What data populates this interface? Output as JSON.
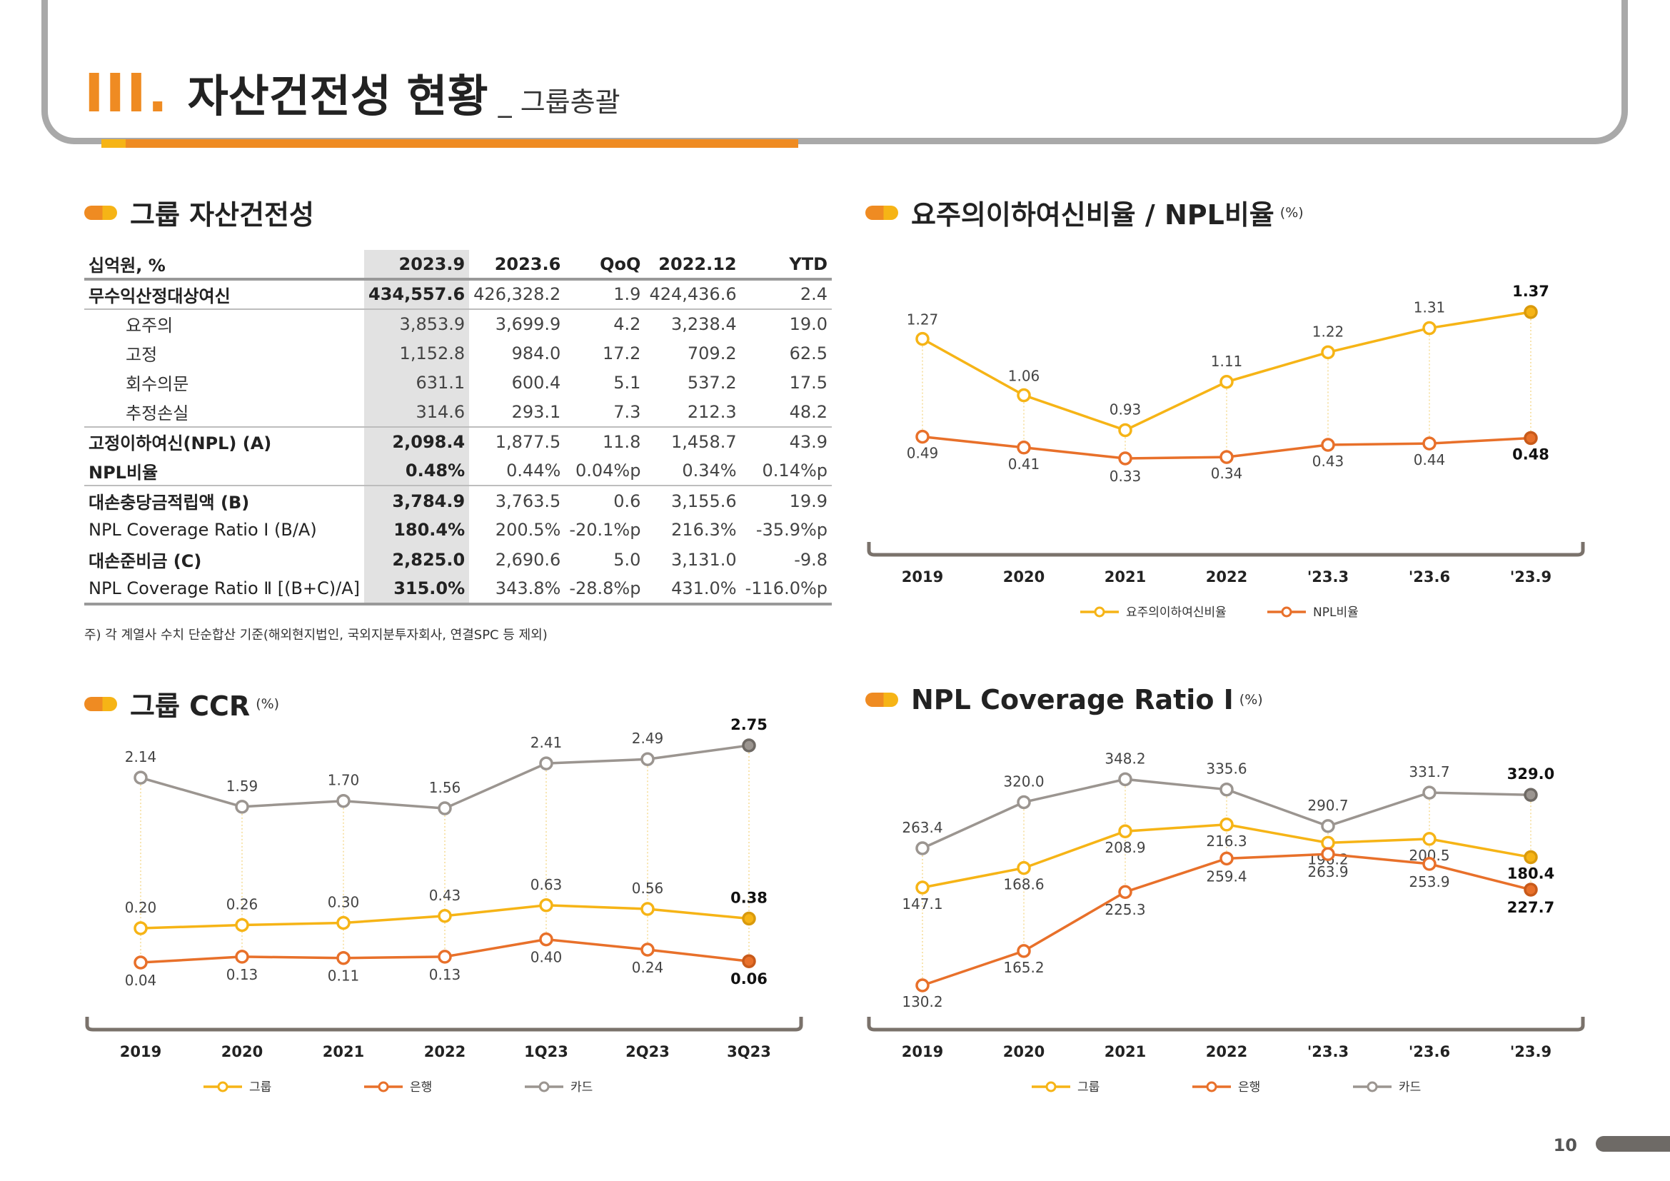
{
  "header": {
    "section_number": "III",
    "section_dot": ".",
    "title": "자산건전성 현황",
    "subtitle": "_ 그룹총괄"
  },
  "colors": {
    "yellow": "#f6b416",
    "orange": "#e8702a",
    "gray": "#9b9590",
    "accent": "#ef8b22"
  },
  "table_section": {
    "title": "그룹 자산건전성",
    "columns": [
      "십억원, %",
      "2023.9",
      "2023.6",
      "QoQ",
      "2022.12",
      "YTD"
    ],
    "rows": [
      {
        "label": "무수익산정대상여신",
        "v": [
          "434,557.6",
          "426,328.2",
          "1.9",
          "424,436.6",
          "2.4"
        ]
      },
      {
        "label": "요주의",
        "v": [
          "3,853.9",
          "3,699.9",
          "4.2",
          "3,238.4",
          "19.0"
        ]
      },
      {
        "label": "고정",
        "v": [
          "1,152.8",
          "984.0",
          "17.2",
          "709.2",
          "62.5"
        ]
      },
      {
        "label": "회수의문",
        "v": [
          "631.1",
          "600.4",
          "5.1",
          "537.2",
          "17.5"
        ]
      },
      {
        "label": "추정손실",
        "v": [
          "314.6",
          "293.1",
          "7.3",
          "212.3",
          "48.2"
        ]
      },
      {
        "label": "고정이하여신(NPL) (A)",
        "v": [
          "2,098.4",
          "1,877.5",
          "11.8",
          "1,458.7",
          "43.9"
        ]
      },
      {
        "label": "NPL비율",
        "v": [
          "0.48%",
          "0.44%",
          "0.04%p",
          "0.34%",
          "0.14%p"
        ]
      },
      {
        "label": "대손충당금적립액 (B)",
        "v": [
          "3,784.9",
          "3,763.5",
          "0.6",
          "3,155.6",
          "19.9"
        ]
      },
      {
        "label": "NPL Coverage Ratio Ⅰ (B/A)",
        "v": [
          "180.4%",
          "200.5%",
          "-20.1%p",
          "216.3%",
          "-35.9%p"
        ]
      },
      {
        "label": "대손준비금 (C)",
        "v": [
          "2,825.0",
          "2,690.6",
          "5.0",
          "3,131.0",
          "-9.8"
        ]
      },
      {
        "label": "NPL Coverage Ratio Ⅱ [(B+C)/A]",
        "v": [
          "315.0%",
          "343.8%",
          "-28.8%p",
          "431.0%",
          "-116.0%p"
        ]
      }
    ],
    "note": "주) 각 계열사 수치 단순합산 기준(해외현지법인, 국외지분투자회사, 연결SPC 등 제외)"
  },
  "chart_titles": {
    "npl": {
      "title": "요주의이하여신비율 / NPL비율",
      "unit": "(%)"
    },
    "ccr": {
      "title": "그룹 CCR",
      "unit": "(%)"
    },
    "coverage": {
      "title": "NPL Coverage Ratio Ⅰ",
      "unit": "(%)"
    }
  },
  "chart_data": [
    {
      "type": "line",
      "title": "요주의이하여신비율 / NPL비율",
      "unit": "(%)",
      "categories": [
        "2019",
        "2020",
        "2021",
        "2022",
        "'23.3",
        "'23.6",
        "'23.9"
      ],
      "series": [
        {
          "name": "요주의이하여신비율",
          "color": "yellow",
          "values": [
            1.27,
            1.06,
            0.93,
            1.11,
            1.22,
            1.31,
            1.37
          ],
          "labels": [
            "1.27",
            "1.06",
            "0.93",
            "1.11",
            "1.22",
            "1.31",
            "1.37"
          ]
        },
        {
          "name": "NPL비율",
          "color": "orange",
          "values": [
            0.49,
            0.41,
            0.33,
            0.34,
            0.43,
            0.44,
            0.48
          ],
          "labels": [
            "0.49",
            "0.41",
            "0.33",
            "0.34",
            "0.43",
            "0.44",
            "0.48"
          ]
        }
      ],
      "legend": "bottom"
    },
    {
      "type": "line",
      "title": "그룹 CCR",
      "unit": "(%)",
      "categories": [
        "2019",
        "2020",
        "2021",
        "2022",
        "1Q23",
        "2Q23",
        "3Q23"
      ],
      "series": [
        {
          "name": "그룹",
          "color": "yellow",
          "values": [
            0.2,
            0.26,
            0.3,
            0.43,
            0.63,
            0.56,
            0.38
          ],
          "labels": [
            "0.20",
            "0.26",
            "0.30",
            "0.43",
            "0.63",
            "0.56",
            "0.38"
          ]
        },
        {
          "name": "은행",
          "color": "orange",
          "values": [
            0.04,
            0.13,
            0.11,
            0.13,
            0.4,
            0.24,
            0.06
          ],
          "labels": [
            "0.04",
            "0.13",
            "0.11",
            "0.13",
            "0.40",
            "0.24",
            "0.06"
          ]
        },
        {
          "name": "카드",
          "color": "gray",
          "values": [
            2.14,
            1.59,
            1.7,
            1.56,
            2.41,
            2.49,
            2.75
          ],
          "labels": [
            "2.14",
            "1.59",
            "1.70",
            "1.56",
            "2.41",
            "2.49",
            "2.75"
          ]
        }
      ],
      "legend": "bottom"
    },
    {
      "type": "line",
      "title": "NPL Coverage Ratio Ⅰ",
      "unit": "(%)",
      "categories": [
        "2019",
        "2020",
        "2021",
        "2022",
        "'23.3",
        "'23.6",
        "'23.9"
      ],
      "series": [
        {
          "name": "그룹",
          "color": "yellow",
          "values": [
            147.1,
            168.6,
            208.9,
            216.3,
            196.2,
            200.5,
            180.4
          ],
          "labels": [
            "147.1",
            "168.6",
            "208.9",
            "216.3",
            "196.2",
            "200.5",
            "180.4"
          ]
        },
        {
          "name": "은행",
          "color": "orange",
          "values": [
            130.2,
            165.2,
            225.3,
            259.4,
            263.9,
            253.9,
            227.7
          ],
          "labels": [
            "130.2",
            "165.2",
            "225.3",
            "259.4",
            "263.9",
            "253.9",
            "227.7"
          ]
        },
        {
          "name": "카드",
          "color": "gray",
          "values": [
            263.4,
            320.0,
            348.2,
            335.6,
            290.7,
            331.7,
            329.0
          ],
          "labels": [
            "263.4",
            "320.0",
            "348.2",
            "335.6",
            "290.7",
            "331.7",
            "329.0"
          ]
        }
      ],
      "legend": "bottom"
    }
  ],
  "page_number": "10"
}
